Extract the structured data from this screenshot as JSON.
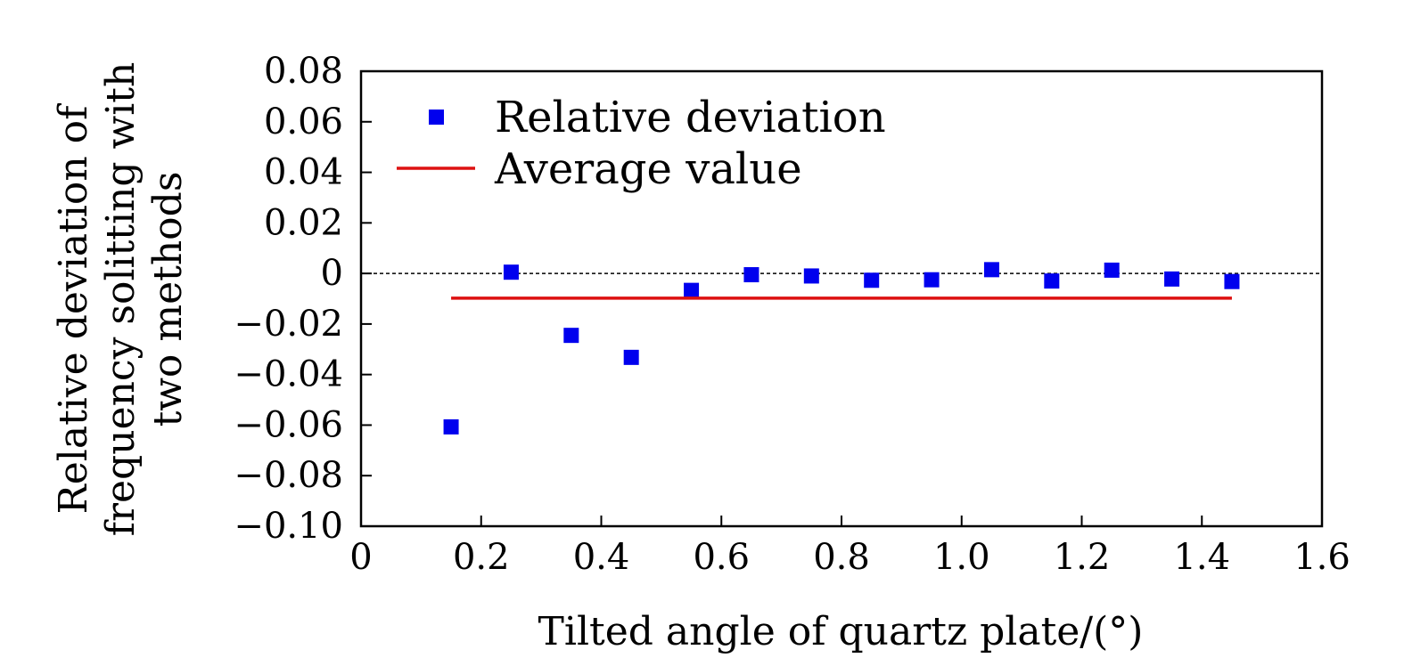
{
  "chart_data": {
    "type": "scatter",
    "title": "",
    "xlabel": "Tilted angle of quartz plate/(°)",
    "ylabel_lines": [
      "Relative deviation of",
      "frequency solitting with",
      "two methods"
    ],
    "xlim": [
      0,
      1.6
    ],
    "ylim": [
      -0.1,
      0.08
    ],
    "x_ticks": [
      0,
      0.2,
      0.4,
      0.6,
      0.8,
      1.0,
      1.2,
      1.4,
      1.6
    ],
    "x_tick_labels": [
      "0",
      "0.2",
      "0.4",
      "0.6",
      "0.8",
      "1.0",
      "1.2",
      "1.4",
      "1.6"
    ],
    "y_ticks": [
      0.08,
      0.06,
      0.04,
      0.02,
      0,
      -0.02,
      -0.04,
      -0.06,
      -0.08,
      -0.1
    ],
    "y_tick_labels": [
      "0.08",
      "0.06",
      "0.04",
      "0.02",
      "0",
      "−0.02",
      "−0.04",
      "−0.06",
      "−0.08",
      "−0.10"
    ],
    "reference_line_y": 0,
    "series": [
      {
        "name": "Relative deviation",
        "kind": "scatter",
        "marker": "square",
        "color": "#0000ee",
        "x": [
          0.15,
          0.25,
          0.35,
          0.45,
          0.55,
          0.65,
          0.75,
          0.85,
          0.95,
          1.05,
          1.15,
          1.25,
          1.35,
          1.45
        ],
        "y": [
          -0.0607,
          0.0005,
          -0.0245,
          -0.0332,
          -0.0067,
          -0.0005,
          -0.001,
          -0.0027,
          -0.0025,
          0.0015,
          -0.003,
          0.0013,
          -0.0022,
          -0.0032
        ]
      },
      {
        "name": "Average value",
        "kind": "line",
        "color": "#dd1111",
        "x": [
          0.15,
          1.45
        ],
        "y": [
          -0.0098,
          -0.0098
        ]
      }
    ],
    "legend_position": "top-left"
  }
}
